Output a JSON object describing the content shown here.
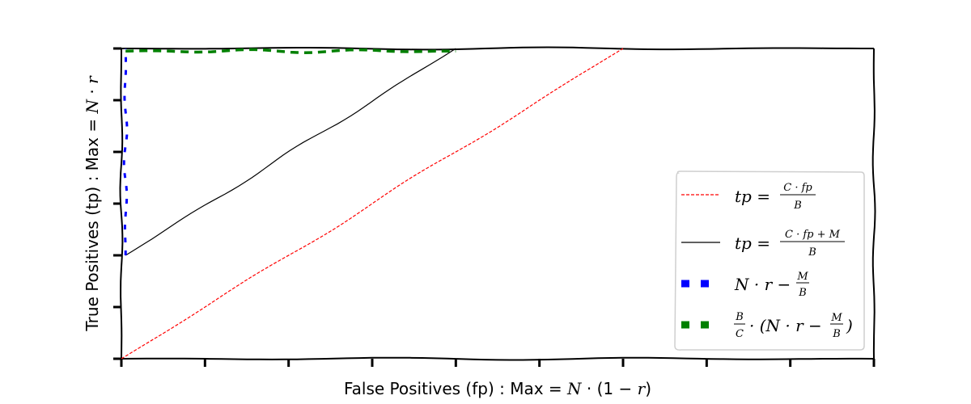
{
  "chart_data": {
    "type": "line",
    "xlabel": "False Positives (fp) : Max = N·(1 − r)",
    "ylabel": "True Positives (tp) : Max  = N·r",
    "xlim": [
      0,
      9
    ],
    "ylim": [
      0,
      6
    ],
    "grid": false,
    "legend_position": "bottom-right",
    "series": [
      {
        "name": "tp = C·fp / B",
        "color": "#ff0000",
        "style": "dotted-thin",
        "x": [
          0,
          6
        ],
        "y": [
          0,
          6
        ]
      },
      {
        "name": "tp = (C·fp + M) / B",
        "color": "#000000",
        "style": "solid",
        "x": [
          0.05,
          4
        ],
        "y": [
          2,
          6
        ]
      },
      {
        "name": "N·r − M/B",
        "color": "#0000ff",
        "style": "dashed-thick",
        "x": [
          0.05,
          0.05
        ],
        "y": [
          2,
          6
        ]
      },
      {
        "name": "(B/C)·(N·r − M/B)",
        "color": "#008000",
        "style": "dashed-thick",
        "x": [
          0.05,
          4
        ],
        "y": [
          5.95,
          5.95
        ]
      }
    ],
    "legend": {
      "entries": [
        {
          "main": "tp =",
          "num": "C · fp",
          "den": "B"
        },
        {
          "main": "tp =",
          "num": "C · fp + M",
          "den": "B"
        },
        {
          "main": "N · r −",
          "num": "M",
          "den": "B",
          "suffix": ""
        },
        {
          "main": "· (N · r −",
          "num": "M",
          "den": "B",
          "prefix_num": "B",
          "prefix_den": "C",
          "suffix": ")"
        }
      ]
    }
  }
}
